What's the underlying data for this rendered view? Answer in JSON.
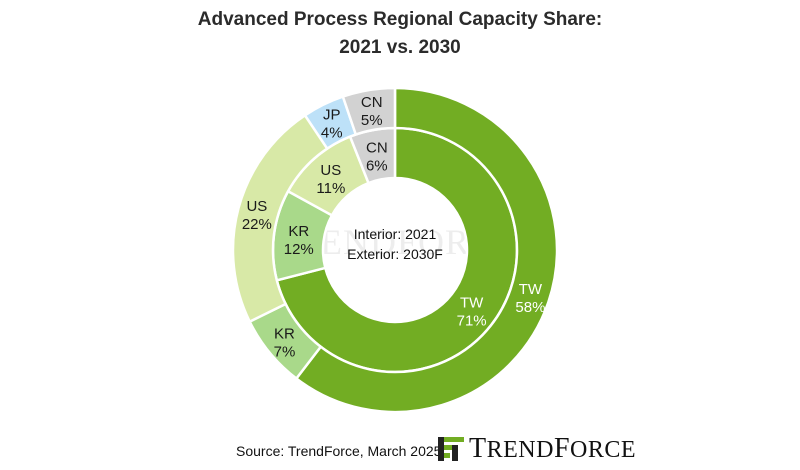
{
  "title_line1": "Advanced Process Regional Capacity Share:",
  "title_line2": "2021 vs. 2030",
  "center_line1": "Interior: 2021",
  "center_line2": "Exterior: 2030F",
  "source": "Source: TrendForce, March 2025",
  "watermark": "TRENDFORCE",
  "logo": "TRENDFORCE",
  "colors": {
    "TW": "#72ad23",
    "KR": "#a9d98a",
    "US": "#d8e9a7",
    "JP": "#bde1f8",
    "CN": "#d2d2d2",
    "stroke": "#ffffff",
    "label_dark": "#1a1a1a",
    "label_light": "#ffffff"
  },
  "chart_data": {
    "type": "pie",
    "subtype": "doughnut",
    "rings": [
      {
        "name": "2021",
        "position": "interior",
        "slices": [
          {
            "label": "TW",
            "value": 71,
            "display": "71%"
          },
          {
            "label": "KR",
            "value": 12,
            "display": "12%"
          },
          {
            "label": "US",
            "value": 11,
            "display": "11%"
          },
          {
            "label": "CN",
            "value": 6,
            "display": "6%"
          }
        ]
      },
      {
        "name": "2030F",
        "position": "exterior",
        "slices": [
          {
            "label": "TW",
            "value": 58,
            "display": "58%"
          },
          {
            "label": "KR",
            "value": 7,
            "display": "7%"
          },
          {
            "label": "US",
            "value": 22,
            "display": "22%"
          },
          {
            "label": "JP",
            "value": 4,
            "display": "4%"
          },
          {
            "label": "CN",
            "value": 5,
            "display": "5%"
          }
        ]
      }
    ]
  }
}
